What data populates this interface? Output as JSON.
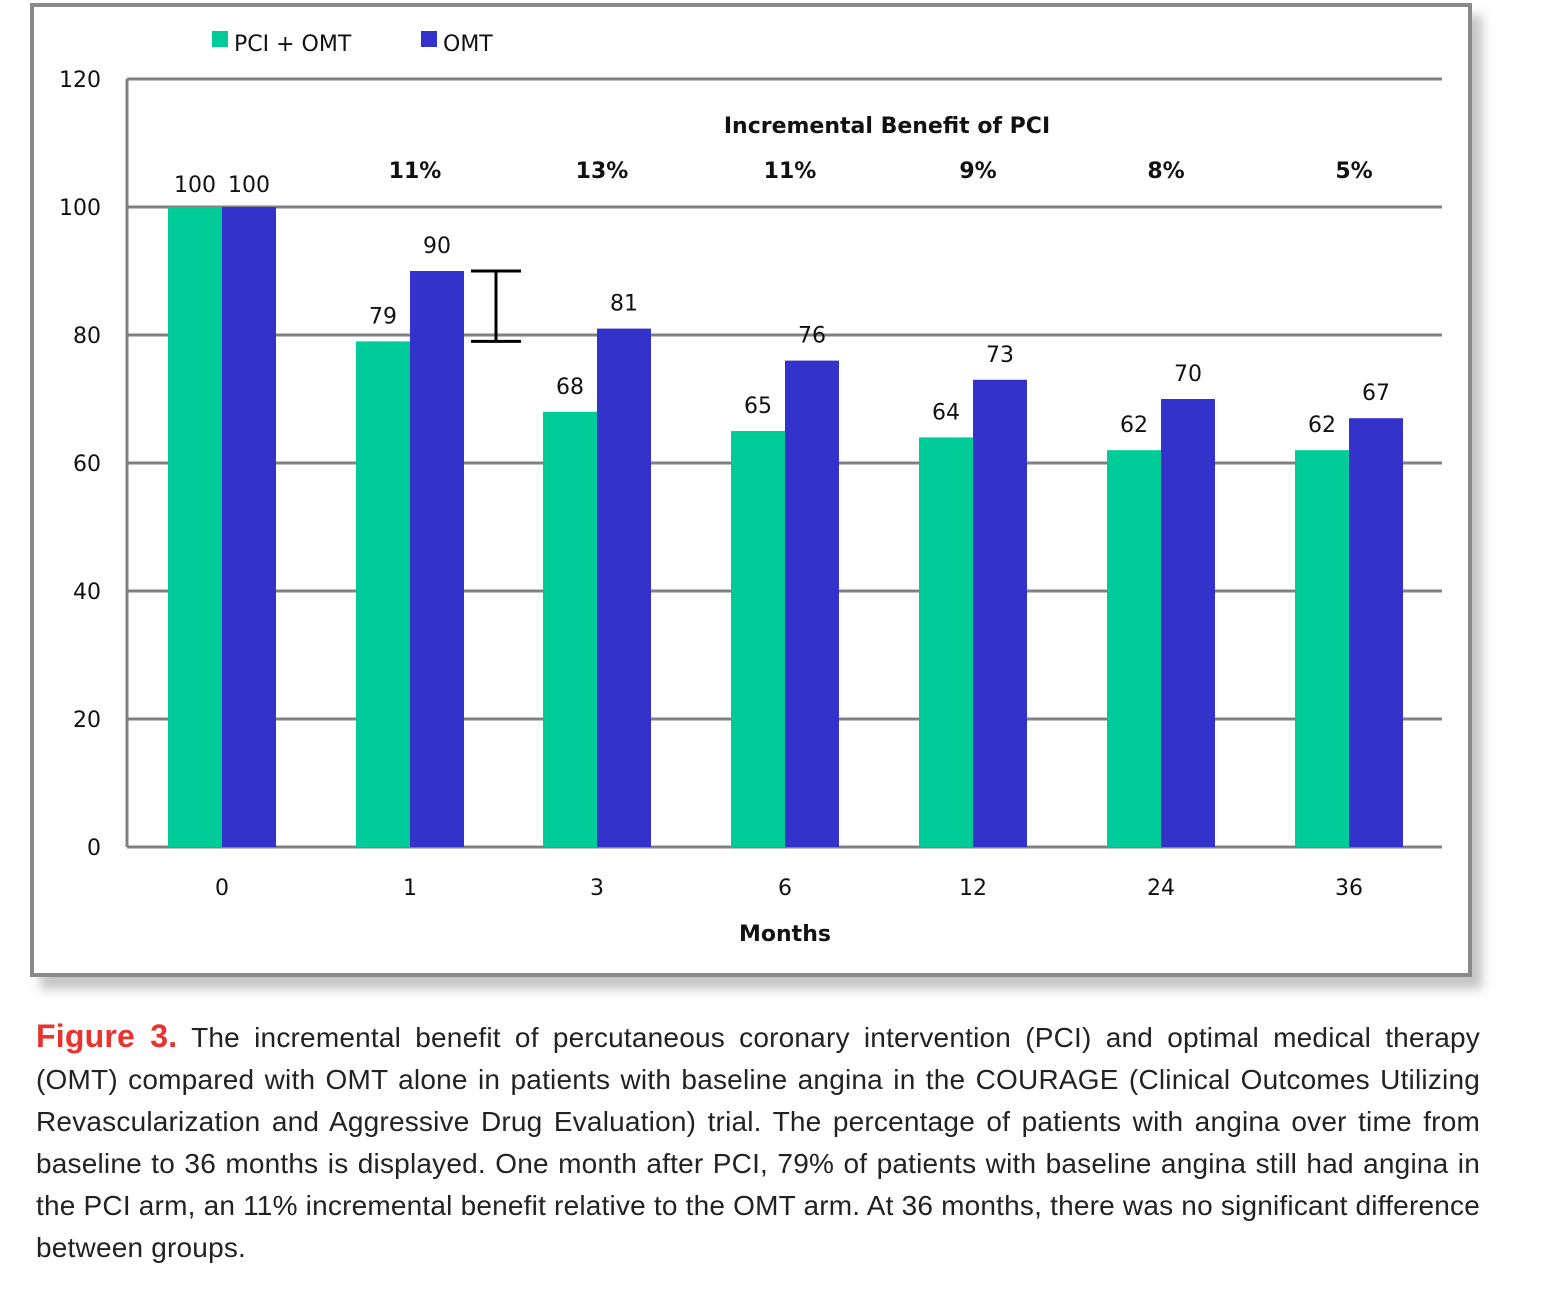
{
  "chart_data": {
    "type": "bar",
    "title": "",
    "annotation_title": "Incremental Benefit of PCI",
    "xlabel": "Months",
    "ylabel": "",
    "categories": [
      "0",
      "1",
      "3",
      "6",
      "12",
      "24",
      "36"
    ],
    "series": [
      {
        "name": "PCI + OMT",
        "color": "#00CC99",
        "values": [
          100,
          79,
          68,
          65,
          64,
          62,
          62
        ]
      },
      {
        "name": "OMT",
        "color": "#3333CC",
        "values": [
          100,
          90,
          81,
          76,
          73,
          70,
          67
        ]
      }
    ],
    "incremental_benefit": [
      "",
      "11%",
      "13%",
      "11%",
      "9%",
      "8%",
      "5%"
    ],
    "ylim": [
      0,
      120
    ],
    "yticks": [
      0,
      20,
      40,
      60,
      80,
      100,
      120
    ],
    "grid": true,
    "legend": "top-left",
    "error_bracket": {
      "category": "1",
      "from": 79,
      "to": 90
    }
  },
  "caption": {
    "label": "Figure 3.",
    "text": " The incremental benefit of percutaneous coronary intervention (PCI) and optimal medical therapy (OMT) compared with OMT alone in patients with baseline angina in the COURAGE (Clinical Outcomes Utilizing Revascularization and Aggressive Drug Evaluation) trial. The percentage of patients with angina over time from baseline to 36 months is displayed. One month after PCI, 79% of patients with baseline angina still had angina in the PCI arm, an 11% incremental benefit relative to the OMT arm. At 36 months, there was no significant difference between groups."
  }
}
